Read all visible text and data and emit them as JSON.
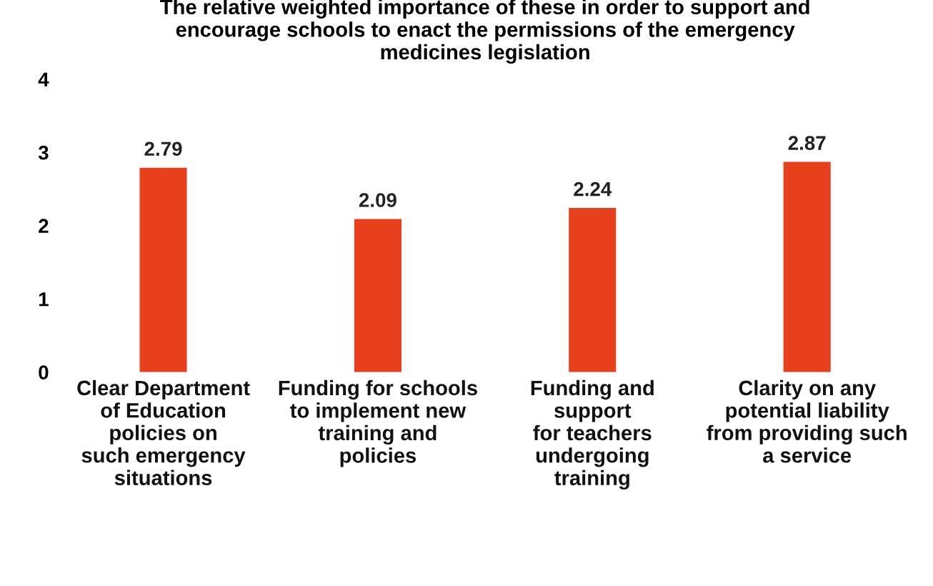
{
  "chart_data": {
    "type": "bar",
    "title": "The relative weighted importance of these in order to support and\nencourage schools to enact the permissions of the emergency\nmedicines legislation",
    "categories": [
      "Clear Department\nof Education\npolicies on\nsuch emergency\nsituations",
      "Funding for schools\nto implement new\ntraining and\npolicies",
      "Funding and\nsupport\nfor teachers\nundergoing\ntraining",
      "Clarity on any\npotential liability\nfrom providing such\na service"
    ],
    "values": [
      2.79,
      2.09,
      2.24,
      2.87
    ],
    "color": "#e8401c",
    "ylim": [
      0,
      4
    ],
    "yticks": [
      0,
      1,
      2,
      3,
      4
    ],
    "grid": false,
    "data_labels": true
  }
}
